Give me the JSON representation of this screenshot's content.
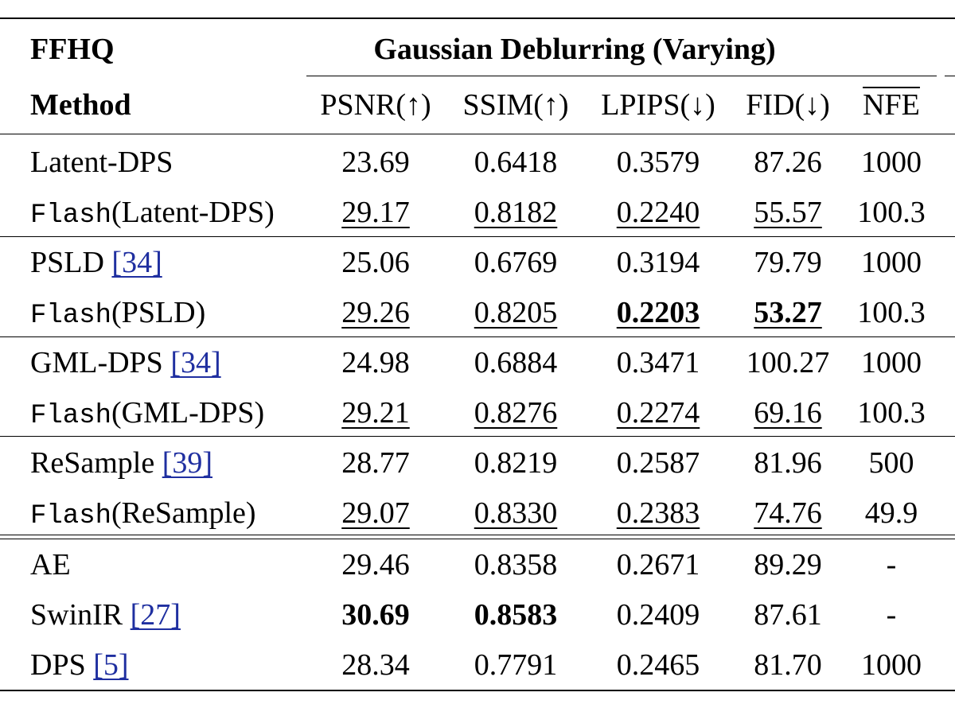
{
  "dataset": "FFHQ",
  "task": "Gaussian Deblurring (Varying)",
  "method_header": "Method",
  "columns": [
    "PSNR(↑)",
    "SSIM(↑)",
    "LPIPS(↓)",
    "FID(↓)",
    "NFE"
  ],
  "rows": [
    {
      "method": "Latent-DPS",
      "prefix": "",
      "cite": "",
      "values": [
        "23.69",
        "0.6418",
        "0.3579",
        "87.26",
        "1000"
      ],
      "underline": [
        false,
        false,
        false,
        false,
        false
      ],
      "bold": [
        false,
        false,
        false,
        false,
        false
      ]
    },
    {
      "method": "(Latent-DPS)",
      "prefix": "Flash",
      "cite": "",
      "values": [
        "29.17",
        "0.8182",
        "0.2240",
        "55.57",
        "100.3"
      ],
      "underline": [
        true,
        true,
        true,
        true,
        false
      ],
      "bold": [
        false,
        false,
        false,
        false,
        false
      ]
    },
    {
      "method": "PSLD",
      "prefix": "",
      "cite": "[34]",
      "values": [
        "25.06",
        "0.6769",
        "0.3194",
        "79.79",
        "1000"
      ],
      "underline": [
        false,
        false,
        false,
        false,
        false
      ],
      "bold": [
        false,
        false,
        false,
        false,
        false
      ]
    },
    {
      "method": "(PSLD)",
      "prefix": "Flash",
      "cite": "",
      "values": [
        "29.26",
        "0.8205",
        "0.2203",
        "53.27",
        "100.3"
      ],
      "underline": [
        true,
        true,
        true,
        true,
        false
      ],
      "bold": [
        false,
        false,
        true,
        true,
        false
      ]
    },
    {
      "method": "GML-DPS",
      "prefix": "",
      "cite": "[34]",
      "values": [
        "24.98",
        "0.6884",
        "0.3471",
        "100.27",
        "1000"
      ],
      "underline": [
        false,
        false,
        false,
        false,
        false
      ],
      "bold": [
        false,
        false,
        false,
        false,
        false
      ]
    },
    {
      "method": "(GML-DPS)",
      "prefix": "Flash",
      "cite": "",
      "values": [
        "29.21",
        "0.8276",
        "0.2274",
        "69.16",
        "100.3"
      ],
      "underline": [
        true,
        true,
        true,
        true,
        false
      ],
      "bold": [
        false,
        false,
        false,
        false,
        false
      ]
    },
    {
      "method": "ReSample",
      "prefix": "",
      "cite": "[39]",
      "values": [
        "28.77",
        "0.8219",
        "0.2587",
        "81.96",
        "500"
      ],
      "underline": [
        false,
        false,
        false,
        false,
        false
      ],
      "bold": [
        false,
        false,
        false,
        false,
        false
      ]
    },
    {
      "method": "(ReSample)",
      "prefix": "Flash",
      "cite": "",
      "values": [
        "29.07",
        "0.8330",
        "0.2383",
        "74.76",
        "49.9"
      ],
      "underline": [
        true,
        true,
        true,
        true,
        false
      ],
      "bold": [
        false,
        false,
        false,
        false,
        false
      ]
    },
    {
      "method": "AE",
      "prefix": "",
      "cite": "",
      "values": [
        "29.46",
        "0.8358",
        "0.2671",
        "89.29",
        "-"
      ],
      "underline": [
        false,
        false,
        false,
        false,
        false
      ],
      "bold": [
        false,
        false,
        false,
        false,
        false
      ]
    },
    {
      "method": "SwinIR",
      "prefix": "",
      "cite": "[27]",
      "values": [
        "30.69",
        "0.8583",
        "0.2409",
        "87.61",
        "-"
      ],
      "underline": [
        false,
        false,
        false,
        false,
        false
      ],
      "bold": [
        true,
        true,
        false,
        false,
        false
      ]
    },
    {
      "method": "DPS",
      "prefix": "",
      "cite": "[5]",
      "values": [
        "28.34",
        "0.7791",
        "0.2465",
        "81.70",
        "1000"
      ],
      "underline": [
        false,
        false,
        false,
        false,
        false
      ],
      "bold": [
        false,
        false,
        false,
        false,
        false
      ]
    }
  ]
}
